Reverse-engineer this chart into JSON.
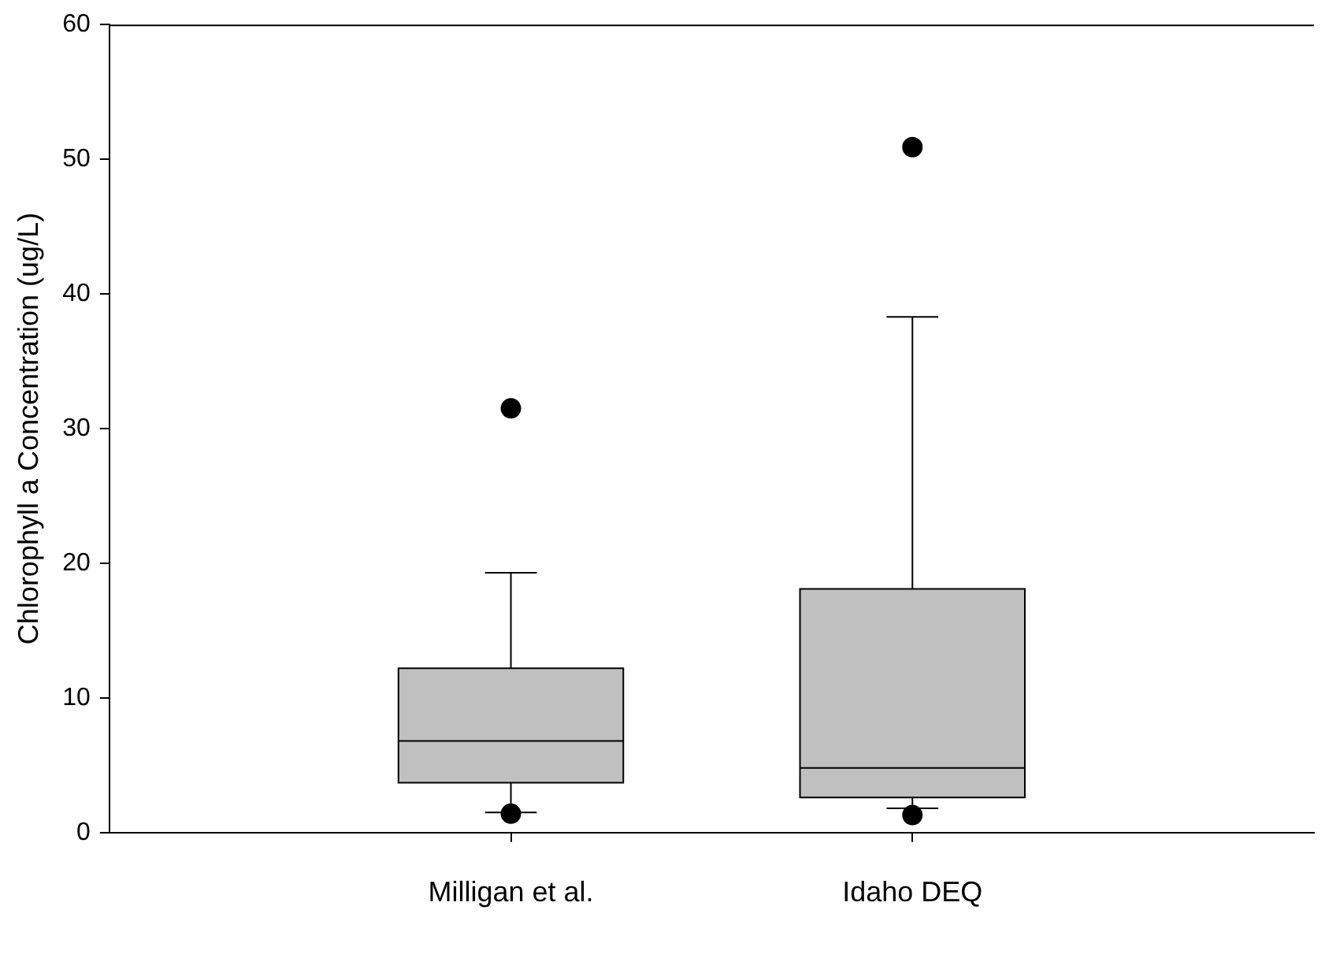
{
  "chart_data": {
    "type": "box",
    "ylabel": "Chlorophyll a Concentration (ug/L)",
    "categories": [
      "Milligan et al.",
      "Idaho DEQ"
    ],
    "boxes": [
      {
        "low": 1.5,
        "q1": 3.7,
        "median": 6.8,
        "q3": 12.2,
        "high": 19.3,
        "outliers": [
          31.5,
          1.4
        ]
      },
      {
        "low": 1.8,
        "q1": 2.6,
        "median": 4.8,
        "q3": 18.1,
        "high": 38.3,
        "outliers": [
          50.9,
          1.3
        ]
      }
    ],
    "color": "#c0c0c0",
    "ylim": [
      0,
      60
    ],
    "yticks": [
      0,
      10,
      20,
      30,
      40,
      50,
      60
    ],
    "grid": false,
    "legend": false,
    "marker": "circle"
  }
}
